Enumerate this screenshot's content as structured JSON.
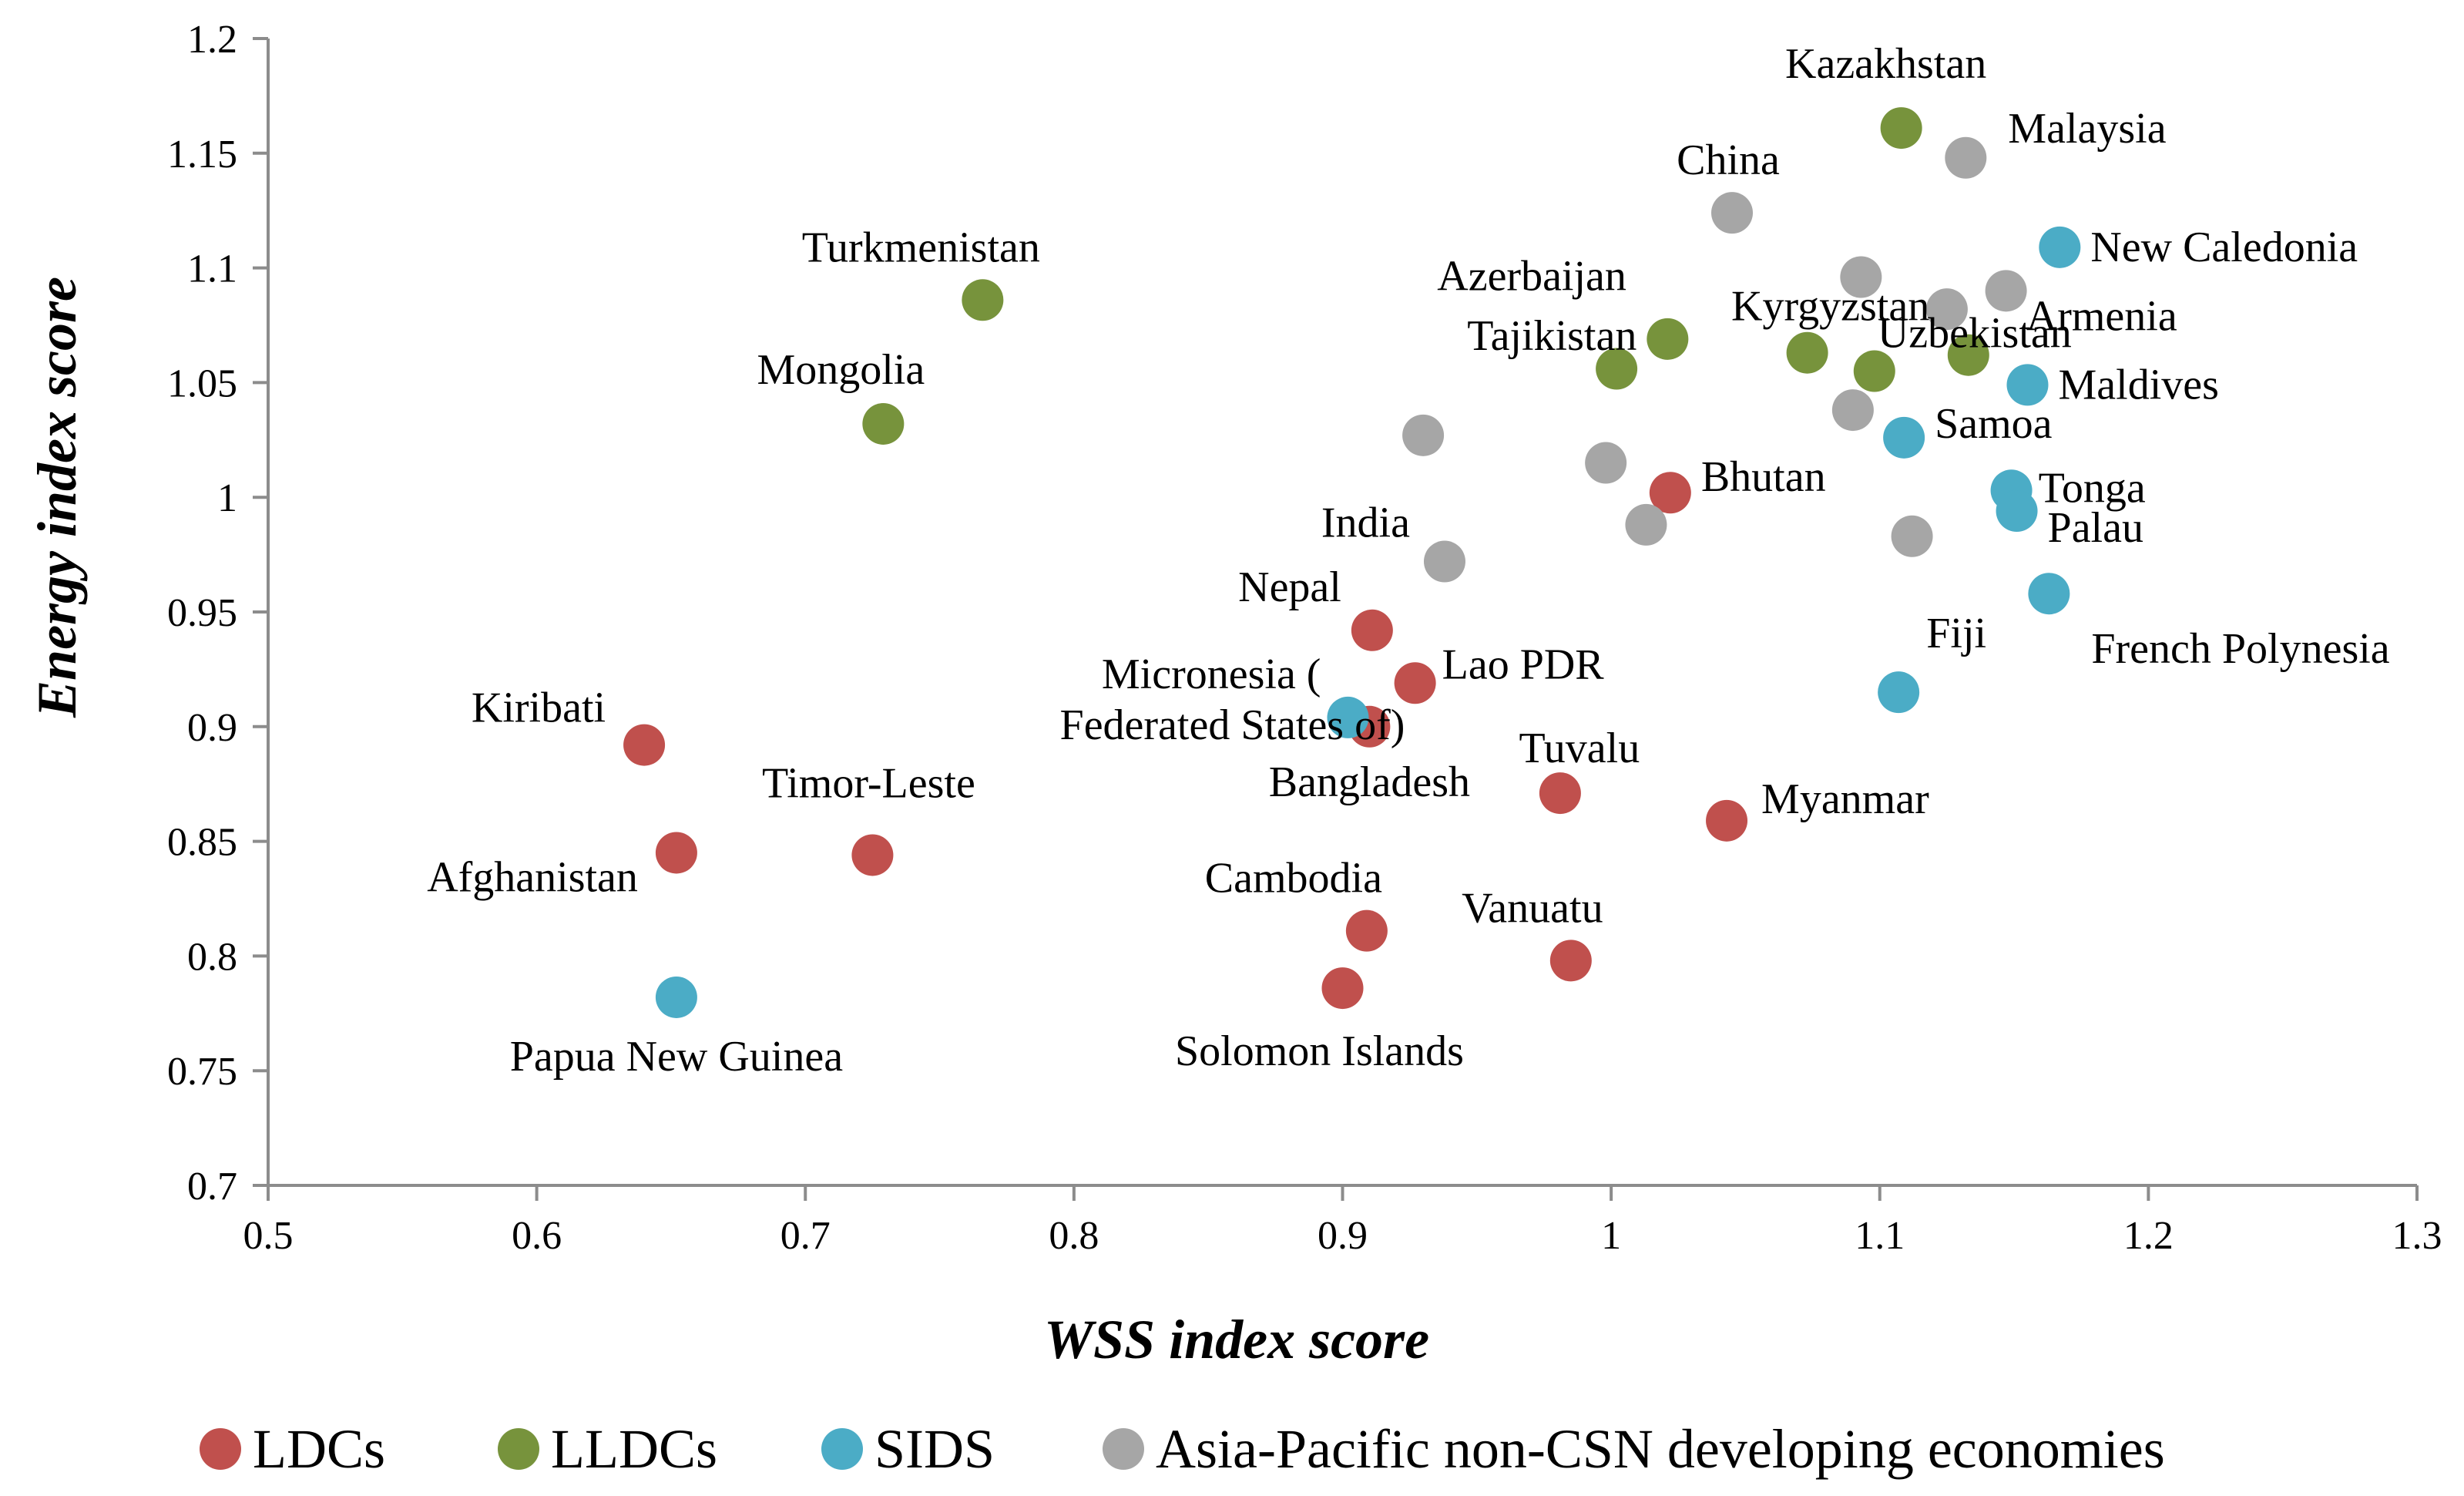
{
  "chart_data": {
    "type": "scatter",
    "xlabel": "WSS index score",
    "ylabel": "Energy index score",
    "xlim": [
      0.5,
      1.3
    ],
    "ylim": [
      0.7,
      1.2
    ],
    "x_ticks": [
      "0.5",
      "0.6",
      "0.7",
      "0.8",
      "0.9",
      "1",
      "1.1",
      "1.2",
      "1.3"
    ],
    "y_ticks": [
      "0.7",
      "0.75",
      "0.8",
      "0.85",
      "0.9",
      "0.95",
      "1",
      "1.05",
      "1.1",
      "1.15",
      "1.2"
    ],
    "grid": false,
    "legend_position": "bottom",
    "colors": {
      "LDCs": "#C0504D",
      "LLDCs": "#77933C",
      "SIDS": "#4BACC6",
      "Asia-Pacific non-CSN developing economies": "#A6A6A6"
    },
    "series": [
      {
        "name": "LDCs",
        "points": [
          {
            "label": "Kiribati",
            "x": 0.64,
            "y": 0.892
          },
          {
            "label": "Afghanistan",
            "x": 0.652,
            "y": 0.845
          },
          {
            "label": "Timor-Leste",
            "x": 0.725,
            "y": 0.844
          },
          {
            "label": "Nepal",
            "x": 0.911,
            "y": 0.942
          },
          {
            "label": "Lao PDR",
            "x": 0.927,
            "y": 0.919
          },
          {
            "label": "Bangladesh",
            "x": 0.91,
            "y": 0.9
          },
          {
            "label": "Cambodia",
            "x": 0.909,
            "y": 0.811
          },
          {
            "label": "Solomon Islands",
            "x": 0.9,
            "y": 0.786
          },
          {
            "label": "Vanuatu",
            "x": 0.985,
            "y": 0.798
          },
          {
            "label": "Tuvalu",
            "x": 0.981,
            "y": 0.871
          },
          {
            "label": "Myanmar",
            "x": 1.043,
            "y": 0.859
          },
          {
            "label": "Bhutan",
            "x": 1.022,
            "y": 1.002
          }
        ]
      },
      {
        "name": "LLDCs",
        "points": [
          {
            "label": "Turkmenistan",
            "x": 0.766,
            "y": 1.086
          },
          {
            "label": "Mongolia",
            "x": 0.729,
            "y": 1.032
          },
          {
            "label": "Azerbaijan",
            "x": 1.002,
            "y": 1.056
          },
          {
            "label": "Tajikistan",
            "x": 1.021,
            "y": 1.069
          },
          {
            "label": "Kyrgyzstan",
            "x": 1.073,
            "y": 1.063
          },
          {
            "label": "Uzbekistan",
            "x": 1.098,
            "y": 1.055
          },
          {
            "label": "Kazakhstan",
            "x": 1.108,
            "y": 1.161
          },
          {
            "label": "Armenia",
            "x": 1.133,
            "y": 1.062
          }
        ]
      },
      {
        "name": "SIDS",
        "points": [
          {
            "label": "Micronesia (Federated States of)",
            "x": 0.902,
            "y": 0.904
          },
          {
            "label": "Papua New Guinea",
            "x": 0.652,
            "y": 0.782
          },
          {
            "label": "New Caledonia",
            "x": 1.167,
            "y": 1.109
          },
          {
            "label": "Maldives",
            "x": 1.155,
            "y": 1.049
          },
          {
            "label": "Samoa",
            "x": 1.109,
            "y": 1.026
          },
          {
            "label": "Tonga",
            "x": 1.149,
            "y": 1.003
          },
          {
            "label": "Palau",
            "x": 1.151,
            "y": 0.994
          },
          {
            "label": "French Polynesia",
            "x": 1.163,
            "y": 0.958
          },
          {
            "label": "Fiji",
            "x": 1.107,
            "y": 0.915
          }
        ]
      },
      {
        "name": "Asia-Pacific non-CSN developing economies",
        "points": [
          {
            "label": "China",
            "x": 1.045,
            "y": 1.124
          },
          {
            "label": "Malaysia",
            "x": 1.132,
            "y": 1.148
          },
          {
            "label": "India",
            "x": 0.938,
            "y": 0.972
          },
          {
            "x": 0.93,
            "y": 1.027
          },
          {
            "x": 0.998,
            "y": 1.015
          },
          {
            "x": 1.013,
            "y": 0.988
          },
          {
            "x": 1.09,
            "y": 1.038
          },
          {
            "x": 1.093,
            "y": 1.096
          },
          {
            "x": 1.125,
            "y": 1.082
          },
          {
            "x": 1.147,
            "y": 1.09
          },
          {
            "x": 1.112,
            "y": 0.983
          }
        ]
      }
    ]
  }
}
